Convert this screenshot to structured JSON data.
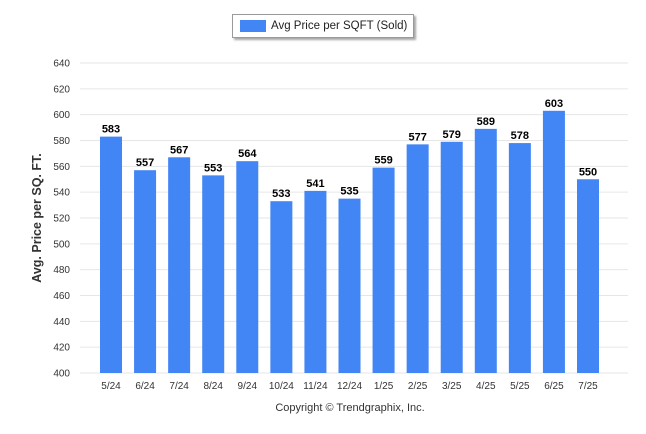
{
  "legend": {
    "label": "Avg Price per SQFT (Sold)"
  },
  "footer": {
    "copyright": "Copyright © Trendgraphix, Inc."
  },
  "colors": {
    "bar": "#4285f4",
    "grid": "#e6e6e6",
    "axis_text": "#333333",
    "value_text": "#000000"
  },
  "chart_data": {
    "type": "bar",
    "title": "",
    "xlabel": "",
    "ylabel": "Avg. Price per SQ. FT.",
    "ylim": [
      400,
      640
    ],
    "yticks": [
      400,
      420,
      440,
      460,
      480,
      500,
      520,
      540,
      560,
      580,
      600,
      620,
      640
    ],
    "grid": true,
    "legend_position": "top-center",
    "categories": [
      "5/24",
      "6/24",
      "7/24",
      "8/24",
      "9/24",
      "10/24",
      "11/24",
      "12/24",
      "1/25",
      "2/25",
      "3/25",
      "4/25",
      "5/25",
      "6/25",
      "7/25"
    ],
    "series": [
      {
        "name": "Avg Price per SQFT (Sold)",
        "values": [
          583,
          557,
          567,
          553,
          564,
          533,
          541,
          535,
          559,
          577,
          579,
          589,
          578,
          603,
          550
        ]
      }
    ]
  }
}
